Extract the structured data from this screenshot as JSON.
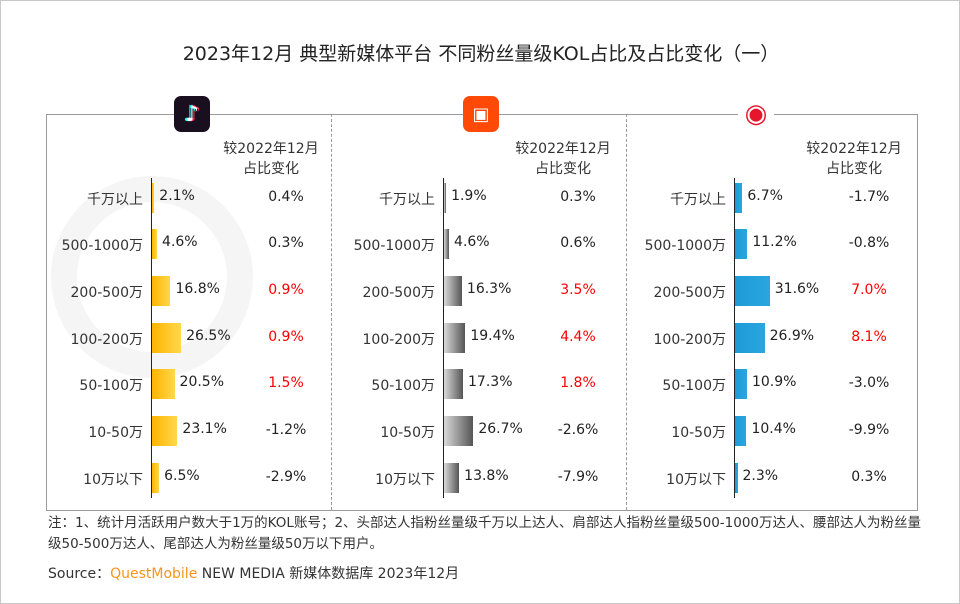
{
  "title": "2023年12月 典型新媒体平台 不同粉丝量级KOL占比及占比变化（一）",
  "watermark": "QUESTMOBILE",
  "chart_data": {
    "type": "bar",
    "orientation": "horizontal",
    "categories": [
      "千万以上",
      "500-1000万",
      "200-500万",
      "100-200万",
      "50-100万",
      "10-50万",
      "10万以下"
    ],
    "change_header": [
      "较2022年12月",
      "占比变化"
    ],
    "panels": [
      {
        "platform_icon": "douyin-icon",
        "color": "#FFC000",
        "values": [
          2.1,
          4.6,
          16.8,
          26.5,
          20.5,
          23.1,
          6.5
        ],
        "value_labels": [
          "2.1%",
          "4.6%",
          "16.8%",
          "26.5%",
          "20.5%",
          "23.1%",
          "6.5%"
        ],
        "changes": [
          "0.4%",
          "0.3%",
          "0.9%",
          "0.9%",
          "1.5%",
          "-1.2%",
          "-2.9%"
        ],
        "highlight": [
          false,
          false,
          true,
          true,
          true,
          false,
          false
        ]
      },
      {
        "platform_icon": "kuaishou-icon",
        "color": "#777777",
        "values": [
          1.9,
          4.6,
          16.3,
          19.4,
          17.3,
          26.7,
          13.8
        ],
        "value_labels": [
          "1.9%",
          "4.6%",
          "16.3%",
          "19.4%",
          "17.3%",
          "26.7%",
          "13.8%"
        ],
        "changes": [
          "0.3%",
          "0.6%",
          "3.5%",
          "4.4%",
          "1.8%",
          "-2.6%",
          "-7.9%"
        ],
        "highlight": [
          false,
          false,
          true,
          true,
          true,
          false,
          false
        ]
      },
      {
        "platform_icon": "weibo-icon",
        "color": "#1E9BD7",
        "values": [
          6.7,
          11.2,
          31.6,
          26.9,
          10.9,
          10.4,
          2.3
        ],
        "value_labels": [
          "6.7%",
          "11.2%",
          "31.6%",
          "26.9%",
          "10.9%",
          "10.4%",
          "2.3%"
        ],
        "changes": [
          "-1.7%",
          "-0.8%",
          "7.0%",
          "8.1%",
          "-3.0%",
          "-9.9%",
          "0.3%"
        ],
        "highlight": [
          false,
          false,
          true,
          true,
          false,
          false,
          false
        ]
      }
    ],
    "highlight_color": "#FF0000"
  },
  "note": "注：1、统计月活跃用户数大于1万的KOL账号；2、头部达人指粉丝量级千万以上达人、肩部达人指粉丝量级500-1000万达人、腰部达人为粉丝量级50-500万达人、尾部达人为粉丝量级50万以下用户。",
  "source": {
    "prefix": "Source：",
    "brand": "QuestMobile",
    "rest": " NEW MEDIA 新媒体数据库 2023年12月"
  }
}
